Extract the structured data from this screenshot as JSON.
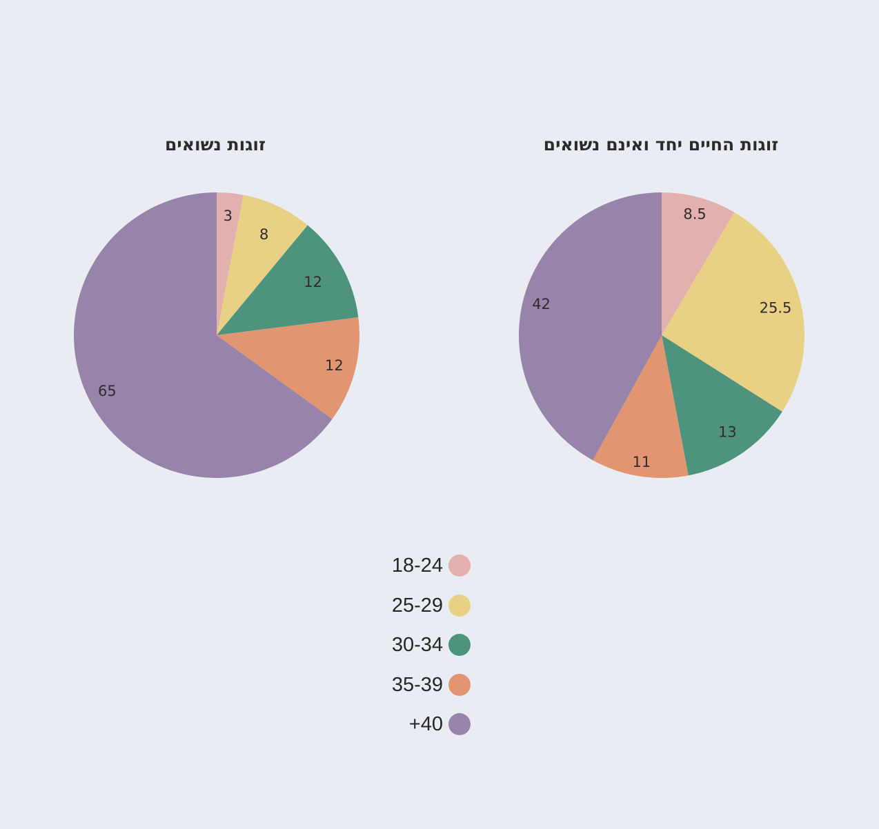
{
  "chart_data": [
    {
      "type": "pie",
      "title": "זוגות נשואים",
      "categories": [
        "18-24",
        "25-29",
        "30-34",
        "35-39",
        "40+"
      ],
      "values": [
        3,
        8,
        12,
        12,
        65
      ],
      "value_labels": [
        "3",
        "8",
        "12",
        "12",
        "65"
      ],
      "start_angle": "12 o'clock",
      "direction": "clockwise"
    },
    {
      "type": "pie",
      "title": "זוגות החיים יחד ואינם נשואים",
      "categories": [
        "18-24",
        "25-29",
        "30-34",
        "35-39",
        "40+"
      ],
      "values": [
        8.5,
        25.5,
        13,
        11,
        42
      ],
      "value_labels": [
        "8.5",
        "25.5",
        "13",
        "11",
        "42"
      ],
      "start_angle": "12 o'clock",
      "direction": "clockwise"
    }
  ],
  "legend": {
    "placement": "bottom-center",
    "items": [
      {
        "label": "18-24",
        "color": "#e2b0ae"
      },
      {
        "label": "25-29",
        "color": "#e8d085"
      },
      {
        "label": "30-34",
        "color": "#4e937e"
      },
      {
        "label": "35-39",
        "color": "#e19570"
      },
      {
        "label": "+40",
        "color": "#9883aa"
      }
    ]
  }
}
